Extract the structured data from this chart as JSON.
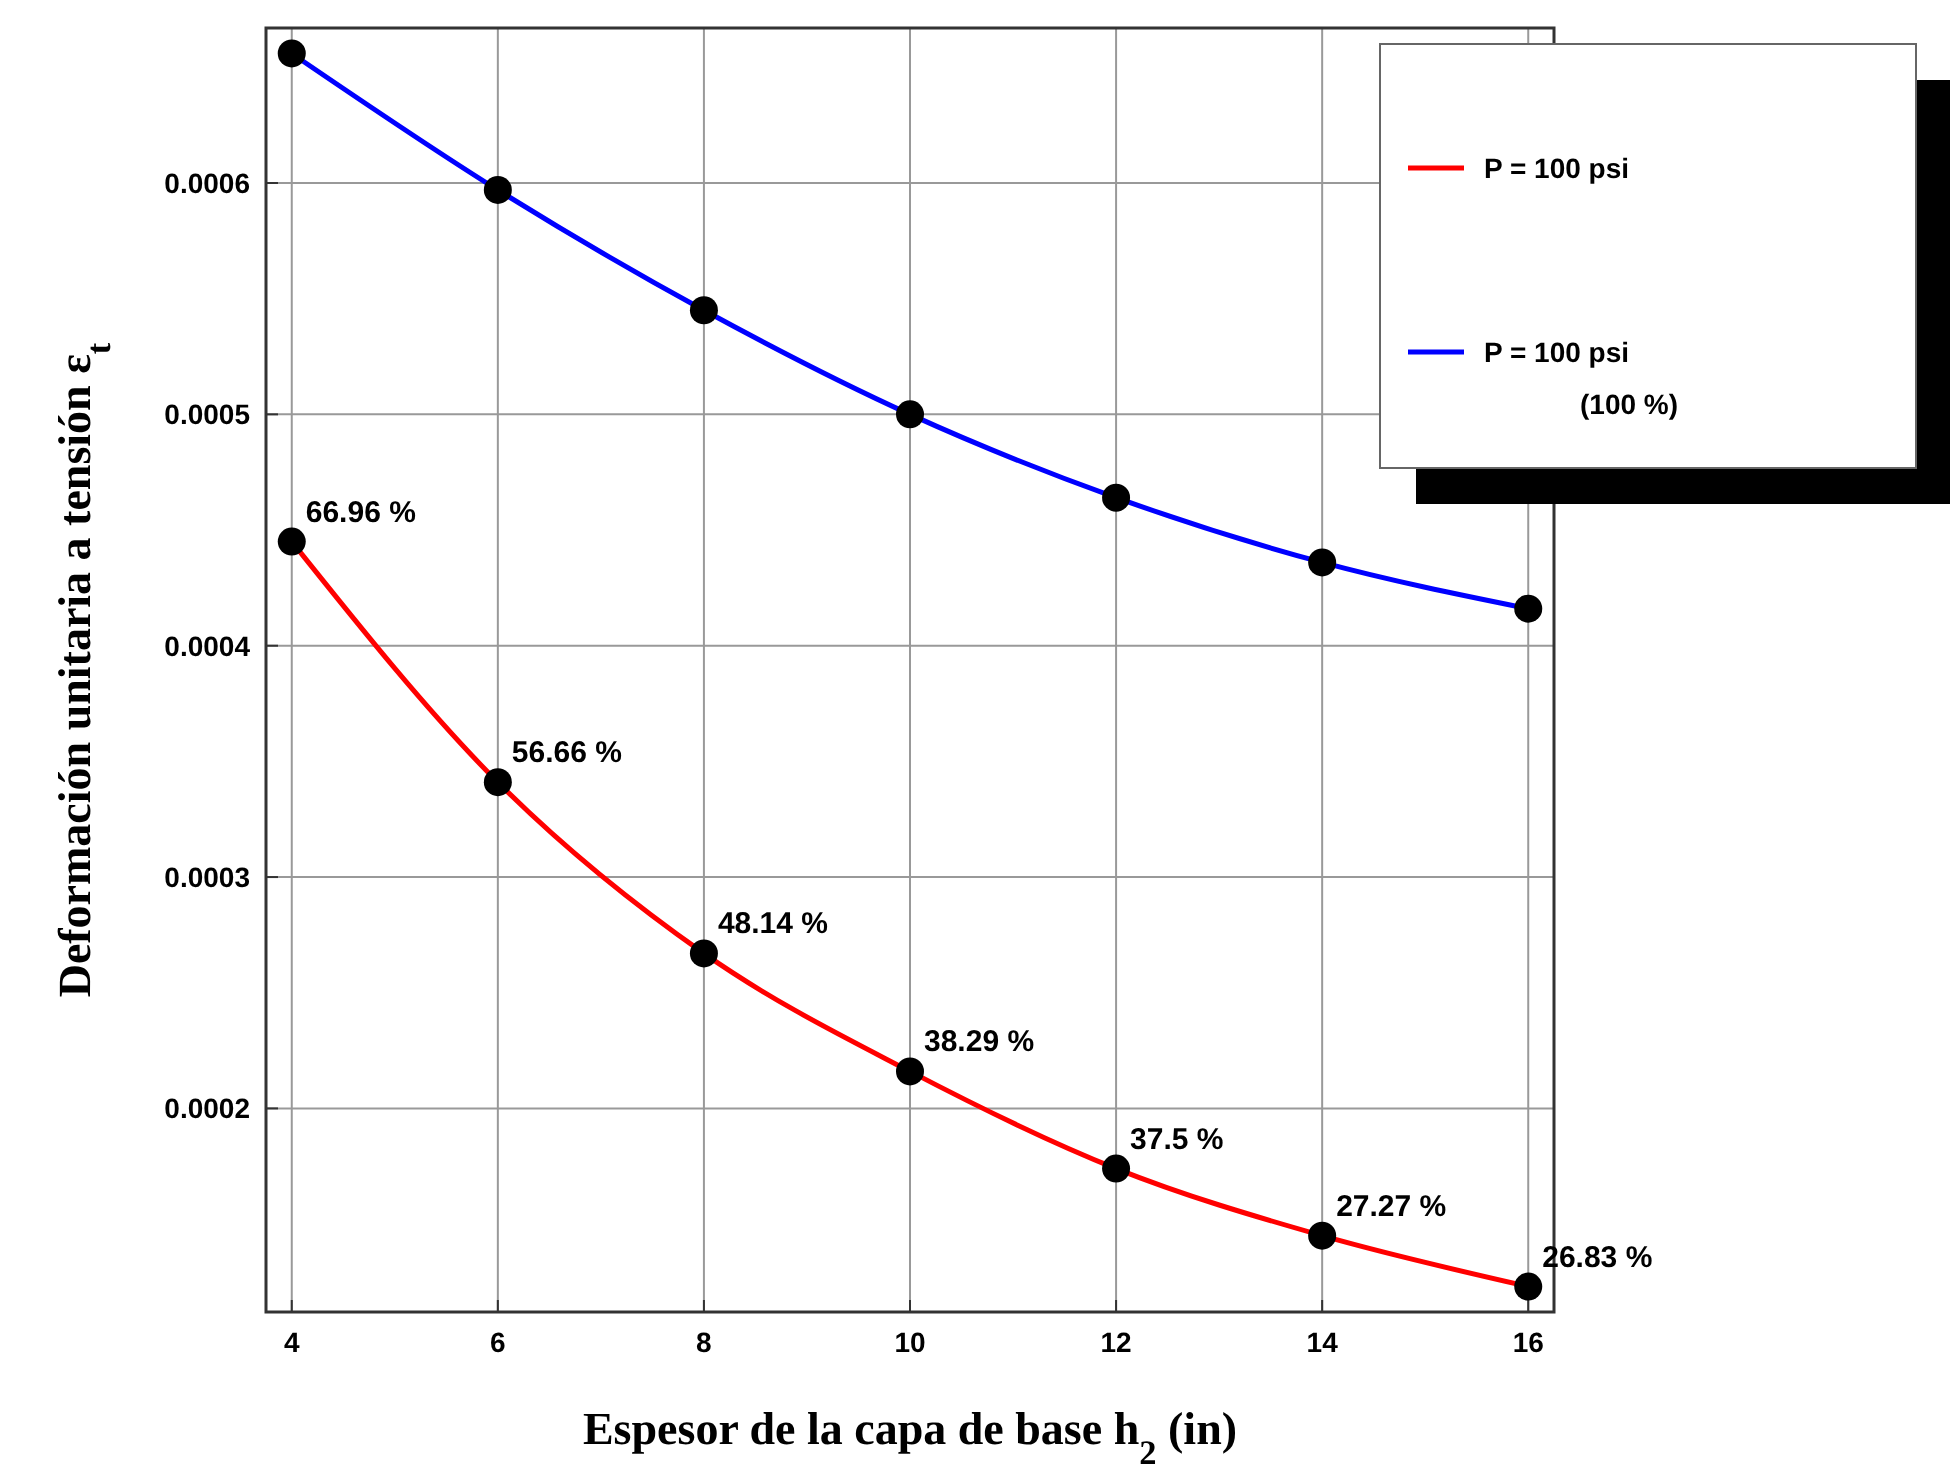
{
  "chart_data": {
    "type": "line",
    "xlabel": "Espesor de la capa de base h$_{2}$ (in)",
    "ylabel": "Deformación  unitaria  a  tensión  ε$_{t}$",
    "x": [
      4,
      6,
      8,
      10,
      12,
      14,
      16
    ],
    "series": [
      {
        "name": "P = 100 psi",
        "color": "#ff0000",
        "values": [
          0.000445,
          0.000341,
          0.000267,
          0.000216,
          0.000174,
          0.000145,
          0.000123
        ]
      },
      {
        "name": "P = 100 psi (100 %)",
        "color": "#0000ff",
        "values": [
          0.000656,
          0.000597,
          0.000545,
          0.0005,
          0.000464,
          0.000436,
          0.000416
        ]
      }
    ],
    "annotations": [
      {
        "text": "66.96 %",
        "x": 4,
        "y": 0.000445
      },
      {
        "text": "56.66 %",
        "x": 6,
        "y": 0.000341
      },
      {
        "text": "48.14 %",
        "x": 8,
        "y": 0.000267
      },
      {
        "text": "38.29 %",
        "x": 10,
        "y": 0.000216
      },
      {
        "text": "37.5 %",
        "x": 12,
        "y": 0.000174
      },
      {
        "text": "27.27 %",
        "x": 14,
        "y": 0.000145
      },
      {
        "text": "26.83 %",
        "x": 16,
        "y": 0.000123
      }
    ],
    "xlim": [
      3.75,
      16.25
    ],
    "xticks": [
      4,
      6,
      8,
      10,
      12,
      14,
      16
    ],
    "ylim": [
      0.000112,
      0.000667
    ],
    "yticks": [
      0.0002,
      0.0003,
      0.0004,
      0.0005,
      0.0006
    ],
    "grid": true,
    "legend": "top right",
    "marker": "circle",
    "line_style": "solid"
  }
}
